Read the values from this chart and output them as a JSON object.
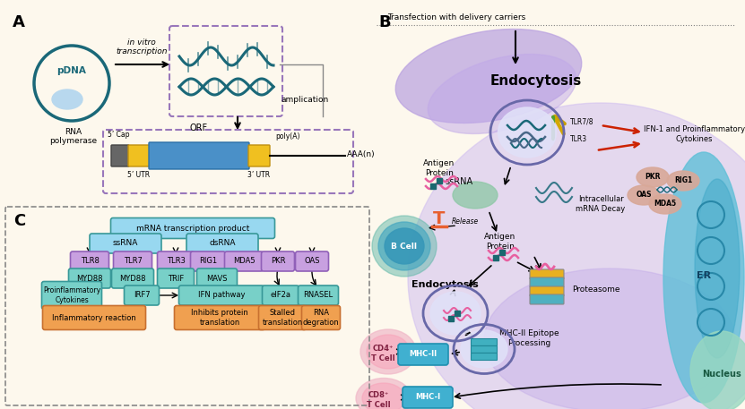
{
  "bg_color": "#fdf8ed",
  "panel_a": {
    "label": "A",
    "pdna_text": "pDNA",
    "rna_pol_text": "RNA\npolymerase",
    "arrow_text": "in vitro\ntranscription",
    "amplication_text": "amplication",
    "orf_text": "ORF",
    "cap_text": "5’ Cap",
    "polya_text": "poly(A)",
    "utr5_text": "5’ UTR",
    "utr3_text": "3’ UTR",
    "aaan_text": "AAA(n)"
  },
  "panel_b": {
    "label": "B",
    "transfection_text": "Transfection with delivery carriers",
    "endocytosis_text": "Endocytosis",
    "endocytosis2_text": "Endocytosis",
    "tlr78_text": "TLR7/8",
    "tlr3_text": "TLR3",
    "ssrna_text": "ssRNA",
    "antigen_protein1_text": "Antigen\nProtein",
    "antigen_protein2_text": "Antigen\nProtein",
    "release_text": "Release",
    "ifn_text": "IFN-1 and Proinflammatory\nCytokines",
    "pkr_text": "PKR",
    "rig1_text": "RIG1",
    "oas_text": "OAS",
    "mda5_text": "MDA5",
    "intracellular_text": "Intracellular\nmRNA Decay",
    "proteasome_text": "Proteasome",
    "mhcii_text": "MHC-II Epitope\nProcessing",
    "mhci_text": "MHC-I",
    "mhcii2_text": "MHC-II",
    "cd4_text": "CD4⁺\nT Cell",
    "cd8_text": "CD8⁺\nT Cell",
    "er_text": "ER",
    "nucleus_text": "Nucleus",
    "bcell_text": "B Cell"
  },
  "panel_c": {
    "label": "C",
    "mrna_text": "mRNA transcription product",
    "ssrna_text": "ssRNA",
    "dsrna_text": "dsRNA",
    "tlr8_text": "TLR8",
    "tlr7_text": "TLR7",
    "tlr3_text": "TLR3",
    "rig1_text": "RIG1",
    "mda5_text": "MDA5",
    "pkr_text": "PKR",
    "oas_text": "OAS",
    "myd88a_text": "MYD88",
    "myd88b_text": "MYD88",
    "trif_text": "TRIF",
    "mavs_text": "MAVS",
    "pro_cyt_text": "Proinflammatory\nCytokines",
    "irf7_text": "IRF7",
    "ifn_pathway_text": "IFN pathway",
    "eif2a_text": "eIF2a",
    "rnasel_text": "RNASEL",
    "inflam_text": "Inflammatory reaction",
    "inhibits_text": "Inhibits protein\ntranslation",
    "stalled_text": "Stalled\ntranslation",
    "rna_deg_text": "RNA\ndegration"
  },
  "colors": {
    "dark_teal": "#1a6878",
    "light_purple": "#c8a8e8",
    "cell_purple": "#9878c0",
    "cell_fill": "#d8c8f0",
    "blue_cell": "#48a8c8",
    "green_cell": "#88c8a8",
    "pink_accent": "#e8508a",
    "orange_accent": "#e8a030",
    "red_arrow": "#cc2200",
    "dark_arrow": "#222222",
    "light_blue_box": "#98d8f0",
    "purple_box": "#c8a0e0",
    "cyan_box": "#78d0c8",
    "orange_box": "#f0a050",
    "teal_bdr": "#389898",
    "purple_bdr": "#9060b8"
  }
}
